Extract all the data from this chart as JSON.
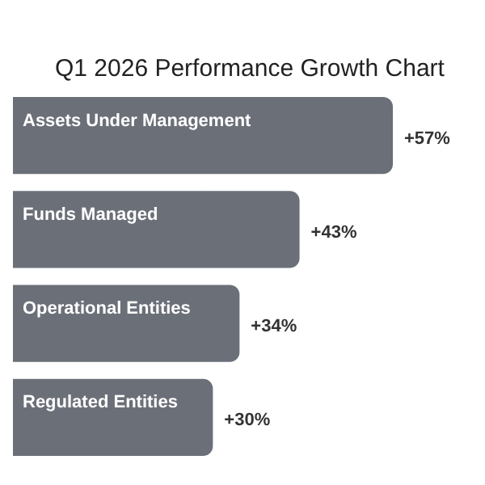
{
  "chart_data": {
    "type": "bar",
    "orientation": "horizontal",
    "title": "Q1 2026 Performance Growth Chart",
    "categories": [
      "Assets Under Management",
      "Funds Managed",
      "Operational Entities",
      "Regulated Entities"
    ],
    "values": [
      57,
      43,
      34,
      30
    ],
    "value_labels": [
      "+57%",
      "+43%",
      "+34%",
      "+30%"
    ],
    "color": "#6b6f78"
  }
}
